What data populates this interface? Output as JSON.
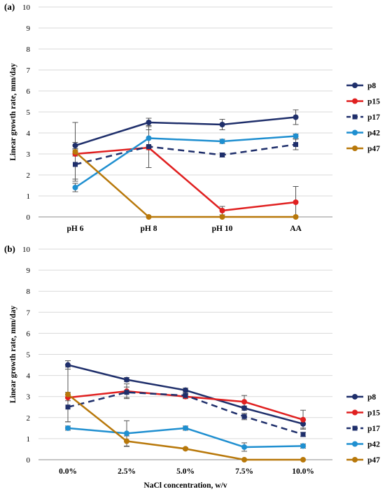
{
  "chart_data": [
    {
      "panel": "(a)",
      "type": "line",
      "title": "",
      "xlabel": "",
      "ylabel": "Linear growth rate, mm/day",
      "categories": [
        "pH 6",
        "pH 8",
        "pH 10",
        "AA"
      ],
      "ylim": [
        0,
        10
      ],
      "yticks": [
        "0",
        "1",
        "2",
        "3",
        "4",
        "5",
        "6",
        "7",
        "8",
        "9",
        "10"
      ],
      "grid": "horizontal",
      "legend": "right",
      "series": [
        {
          "name": "p8",
          "color": "#1f2f6b",
          "dash": false,
          "marker": "circle",
          "values": [
            3.4,
            4.5,
            4.4,
            4.75
          ],
          "errors": [
            0.15,
            0.2,
            0.25,
            0.35
          ]
        },
        {
          "name": "p15",
          "color": "#e02020",
          "dash": false,
          "marker": "circle",
          "values": [
            3.0,
            3.3,
            0.3,
            0.7
          ],
          "errors": [
            0.1,
            0.1,
            0.2,
            0.75
          ]
        },
        {
          "name": "p17",
          "color": "#1f2f6b",
          "dash": true,
          "marker": "square",
          "values": [
            2.5,
            3.35,
            2.95,
            3.45
          ],
          "errors": [
            0.7,
            1.0,
            0.1,
            0.25
          ]
        },
        {
          "name": "p42",
          "color": "#1f8fd0",
          "dash": false,
          "marker": "circle",
          "values": [
            1.4,
            3.75,
            3.6,
            3.85
          ],
          "errors": [
            0.2,
            0.4,
            0.1,
            0.1
          ]
        },
        {
          "name": "p47",
          "color": "#b8780a",
          "dash": false,
          "marker": "circle",
          "values": [
            3.1,
            0.0,
            0.0,
            0.0
          ],
          "errors": [
            1.4,
            0.0,
            0.0,
            0.0
          ]
        }
      ]
    },
    {
      "panel": "(b)",
      "type": "line",
      "title": "",
      "xlabel": "NaCl concentration, w/v",
      "ylabel": "Linear growth rate, mm/day",
      "categories": [
        "0.0%",
        "2.5%",
        "5.0%",
        "7.5%",
        "10.0%"
      ],
      "ylim": [
        0,
        10
      ],
      "yticks": [
        "0",
        "1",
        "2",
        "3",
        "4",
        "5",
        "6",
        "7",
        "8",
        "9",
        "10"
      ],
      "grid": "horizontal",
      "legend": "right",
      "series": [
        {
          "name": "p8",
          "color": "#1f2f6b",
          "dash": false,
          "marker": "circle",
          "values": [
            4.5,
            3.8,
            3.3,
            2.45,
            1.7
          ],
          "errors": [
            0.2,
            0.1,
            0.1,
            0.1,
            0.2
          ]
        },
        {
          "name": "p15",
          "color": "#e02020",
          "dash": false,
          "marker": "circle",
          "values": [
            2.95,
            3.25,
            3.0,
            2.75,
            1.9
          ],
          "errors": [
            0.15,
            0.35,
            0.1,
            0.3,
            0.45
          ]
        },
        {
          "name": "p17",
          "color": "#1f2f6b",
          "dash": true,
          "marker": "square",
          "values": [
            2.5,
            3.2,
            3.05,
            2.05,
            1.2
          ],
          "errors": [
            0.7,
            0.25,
            0.1,
            0.15,
            0.1
          ]
        },
        {
          "name": "p42",
          "color": "#1f8fd0",
          "dash": false,
          "marker": "circle",
          "values": [
            1.5,
            1.25,
            1.5,
            0.6,
            0.65
          ],
          "errors": [
            0.1,
            0.6,
            0.1,
            0.2,
            0.1
          ]
        },
        {
          "name": "p47",
          "color": "#b8780a",
          "dash": false,
          "marker": "circle",
          "values": [
            3.1,
            0.88,
            0.52,
            0.0,
            0.0
          ],
          "errors": [
            1.3,
            0.25,
            0.05,
            0.0,
            0.0
          ]
        }
      ]
    }
  ]
}
